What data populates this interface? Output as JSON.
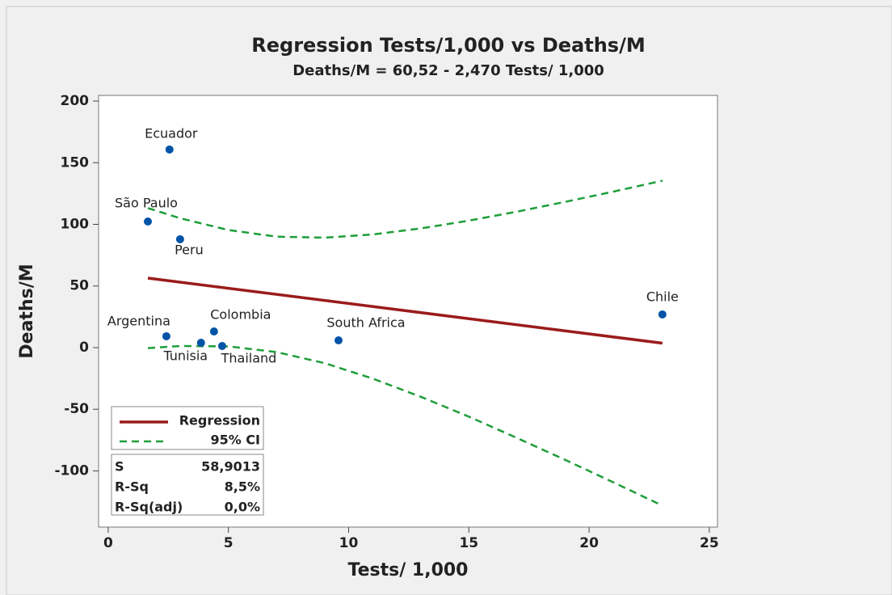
{
  "chart_data": {
    "type": "scatter",
    "title": "Regression Tests/1,000 vs Deaths/M",
    "subtitle": "Deaths/M = 60,52 - 2,470 Tests/ 1,000",
    "xlabel": "Tests/ 1,000",
    "ylabel": "Deaths/M",
    "xlim": [
      -0.4,
      25.34
    ],
    "ylim": [
      -145.6,
      204.6
    ],
    "xticks": [
      0,
      5,
      10,
      15,
      20,
      25
    ],
    "yticks": [
      -100,
      -50,
      0,
      50,
      100,
      150,
      200
    ],
    "points": {
      "color": "#0054a6",
      "labels": [
        "Ecuador",
        "São Paulo",
        "Peru",
        "Argentina",
        "Tunisia",
        "Colombia",
        "Thailand",
        "South Africa",
        "Chile"
      ],
      "x": [
        2.55,
        1.65,
        2.99,
        2.42,
        3.86,
        4.4,
        4.74,
        9.58,
        23.05
      ],
      "values": [
        160.7,
        102.3,
        87.9,
        9.2,
        3.9,
        13.1,
        1.3,
        5.9,
        26.9
      ]
    },
    "regression": {
      "name": "Regression",
      "color": "#9b1b1b",
      "x": [
        1.65,
        23.05
      ],
      "values": [
        56.4,
        3.6
      ]
    },
    "ci": {
      "name": "95% CI",
      "color": "#1e9e3a",
      "x": [
        1.65,
        3,
        5,
        7,
        9,
        11,
        13,
        15,
        17,
        19,
        21,
        23.05
      ],
      "upper": [
        113.2,
        104.9,
        95.4,
        90.0,
        89.2,
        91.8,
        96.7,
        103.0,
        110.3,
        118.2,
        126.5,
        135.4
      ],
      "lower": [
        -0.4,
        1.3,
        1.0,
        -3.6,
        -12.6,
        -25.1,
        -39.9,
        -56.0,
        -73.3,
        -91.0,
        -109.2,
        -128.2
      ]
    },
    "stats": [
      {
        "label": "S",
        "value": "58,9013"
      },
      {
        "label": "R-Sq",
        "value": "8,5%"
      },
      {
        "label": "R-Sq(adj)",
        "value": "0,0%"
      }
    ]
  }
}
